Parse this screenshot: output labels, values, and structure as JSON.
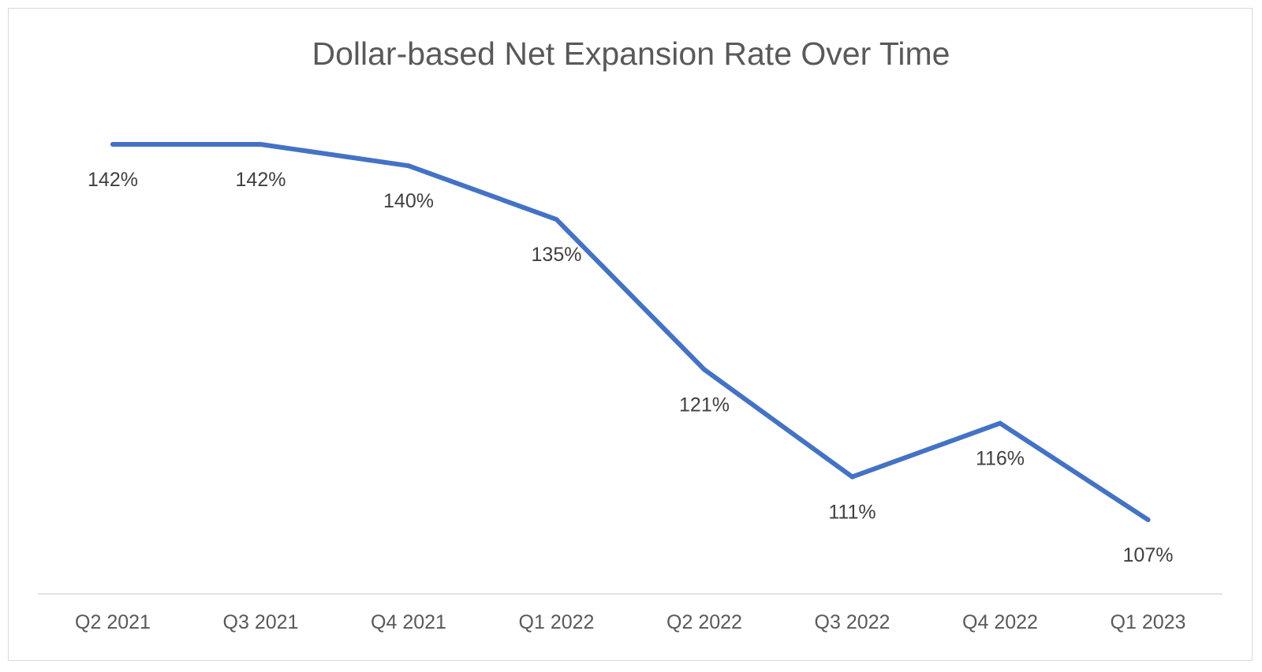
{
  "chart_data": {
    "type": "line",
    "title": "Dollar-based Net Expansion Rate Over Time",
    "xlabel": "",
    "ylabel": "",
    "categories": [
      "Q2 2021",
      "Q3 2021",
      "Q4 2021",
      "Q1 2022",
      "Q2 2022",
      "Q3 2022",
      "Q4 2022",
      "Q1 2023"
    ],
    "series": [
      {
        "values": [
          142,
          142,
          140,
          135,
          121,
          111,
          116,
          107
        ],
        "labels": [
          "142%",
          "142%",
          "140%",
          "135%",
          "121%",
          "111%",
          "116%",
          "107%"
        ],
        "color": "#4472C4"
      }
    ],
    "ylim": [
      95,
      150
    ],
    "grid": false,
    "legend": "none",
    "data_labels": "below"
  }
}
